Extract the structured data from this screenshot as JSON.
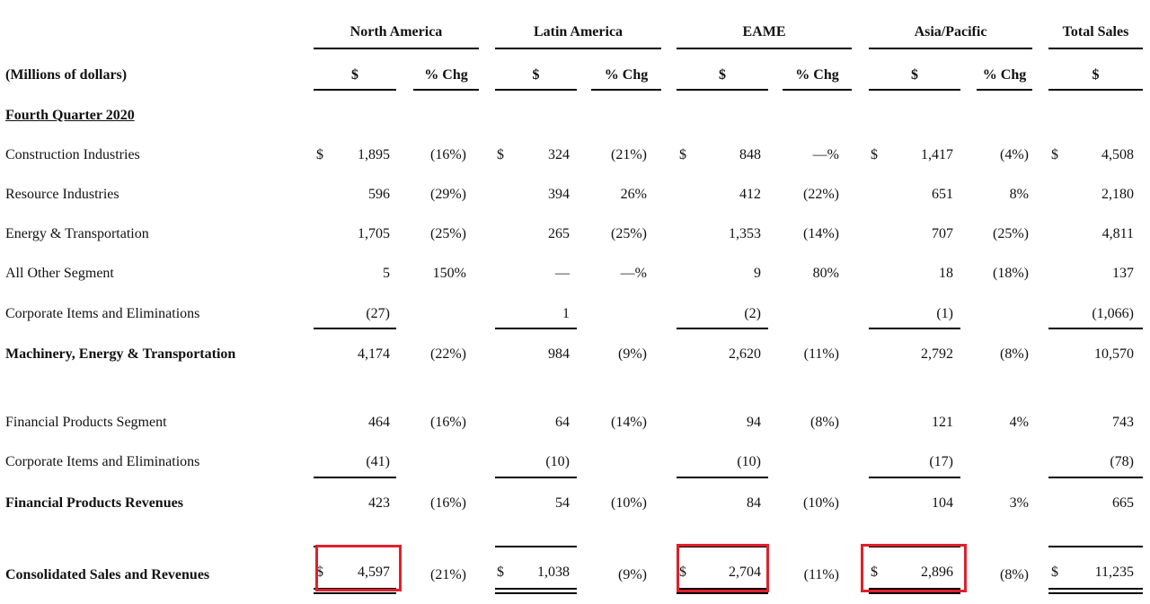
{
  "unit_label": "(Millions of dollars)",
  "section_label": "Fourth Quarter 2020",
  "regions": [
    {
      "name": "North America",
      "sub": [
        "$",
        "% Chg"
      ]
    },
    {
      "name": "Latin America",
      "sub": [
        "$",
        "% Chg"
      ]
    },
    {
      "name": "EAME",
      "sub": [
        "$",
        "% Chg"
      ]
    },
    {
      "name": "Asia/Pacific",
      "sub": [
        "$",
        "% Chg"
      ]
    },
    {
      "name": "Total Sales",
      "sub": [
        "$"
      ]
    }
  ],
  "rows": [
    {
      "label": "Construction Industries",
      "bold": false,
      "dollar": true,
      "cells": [
        "1,895",
        "(16%)",
        "324",
        "(21%)",
        "848",
        "—%",
        "1,417",
        "(4%)",
        "4,508"
      ]
    },
    {
      "label": "Resource Industries",
      "bold": false,
      "dollar": false,
      "cells": [
        "596",
        "(29%)",
        "394",
        "26%",
        "412",
        "(22%)",
        "651",
        "8%",
        "2,180"
      ]
    },
    {
      "label": "Energy & Transportation",
      "bold": false,
      "dollar": false,
      "cells": [
        "1,705",
        "(25%)",
        "265",
        "(25%)",
        "1,353",
        "(14%)",
        "707",
        "(25%)",
        "4,811"
      ]
    },
    {
      "label": "All Other Segment",
      "bold": false,
      "dollar": false,
      "cells": [
        "5",
        "150%",
        "—",
        "—%",
        "9",
        "80%",
        "18",
        "(18%)",
        "137"
      ]
    },
    {
      "label": "Corporate Items and Eliminations",
      "bold": false,
      "dollar": false,
      "cells": [
        "(27)",
        "",
        "1",
        "",
        "(2)",
        "",
        "(1)",
        "",
        "(1,066)"
      ]
    },
    {
      "label": "Machinery, Energy & Transportation",
      "bold": true,
      "dollar": false,
      "cells": [
        "4,174",
        "(22%)",
        "984",
        "(9%)",
        "2,620",
        "(11%)",
        "2,792",
        "(8%)",
        "10,570"
      ]
    },
    {
      "label": "Financial Products Segment",
      "bold": false,
      "dollar": false,
      "cells": [
        "464",
        "(16%)",
        "64",
        "(14%)",
        "94",
        "(8%)",
        "121",
        "4%",
        "743"
      ]
    },
    {
      "label": "Corporate Items and Eliminations",
      "bold": false,
      "dollar": false,
      "cells": [
        "(41)",
        "",
        "(10)",
        "",
        "(10)",
        "",
        "(17)",
        "",
        "(78)"
      ]
    },
    {
      "label": "Financial Products Revenues",
      "bold": true,
      "dollar": false,
      "cells": [
        "423",
        "(16%)",
        "54",
        "(10%)",
        "84",
        "(10%)",
        "104",
        "3%",
        "665"
      ]
    },
    {
      "label": "Consolidated Sales and Revenues",
      "bold": true,
      "dollar": true,
      "cells": [
        "4,597",
        "(21%)",
        "1,038",
        "(9%)",
        "2,704",
        "(11%)",
        "2,896",
        "(8%)",
        "11,235"
      ]
    }
  ],
  "dollar_sign": "$",
  "highlight_color": "#e0202c"
}
